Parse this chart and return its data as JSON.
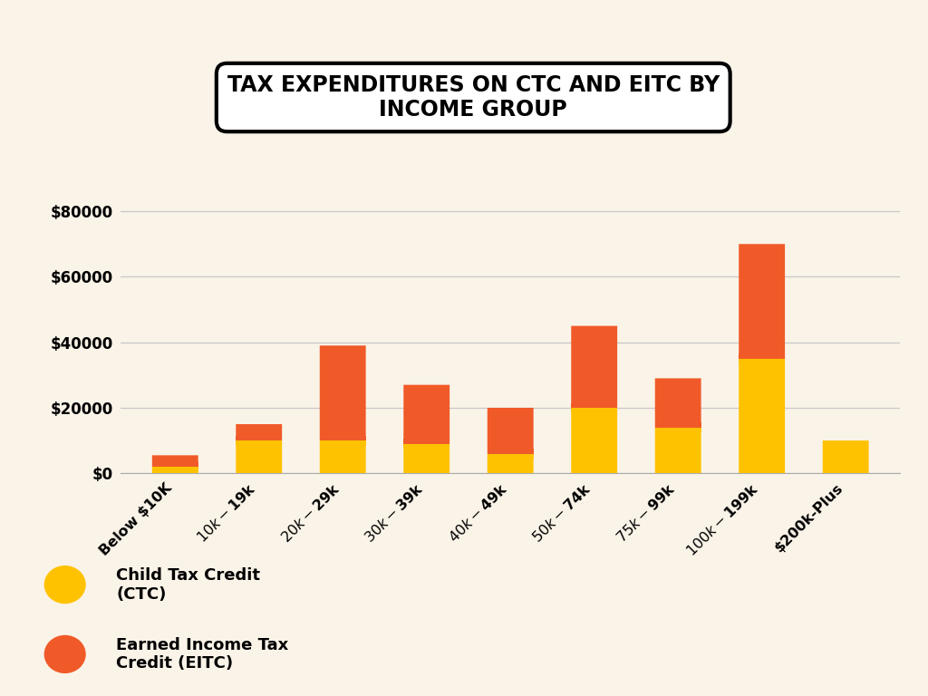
{
  "categories": [
    "Below $10K",
    "$10k-$19k",
    "$20k-$29k",
    "$30k-$39k",
    "$40k-$49k",
    "$50k-$74k",
    "$75k-$99k",
    "$100k-$199k",
    "$200k-Plus"
  ],
  "ctc_values": [
    2000,
    10000,
    10000,
    9000,
    6000,
    20000,
    14000,
    35000,
    10000
  ],
  "eitc_values": [
    3500,
    5000,
    29000,
    18000,
    14000,
    25000,
    15000,
    35000,
    0
  ],
  "ctc_color": "#FFC200",
  "eitc_color": "#F05A28",
  "background_color": "#FAF3E8",
  "title": "TAX EXPENDITURES ON CTC AND EITC BY\nINCOME GROUP",
  "title_fontsize": 17,
  "ylabel_ticks": [
    0,
    20000,
    40000,
    60000,
    80000
  ],
  "ylim": [
    0,
    85000
  ],
  "legend_ctc": "Child Tax Credit\n(CTC)",
  "legend_eitc": "Earned Income Tax\nCredit (EITC)",
  "bar_width": 0.55
}
